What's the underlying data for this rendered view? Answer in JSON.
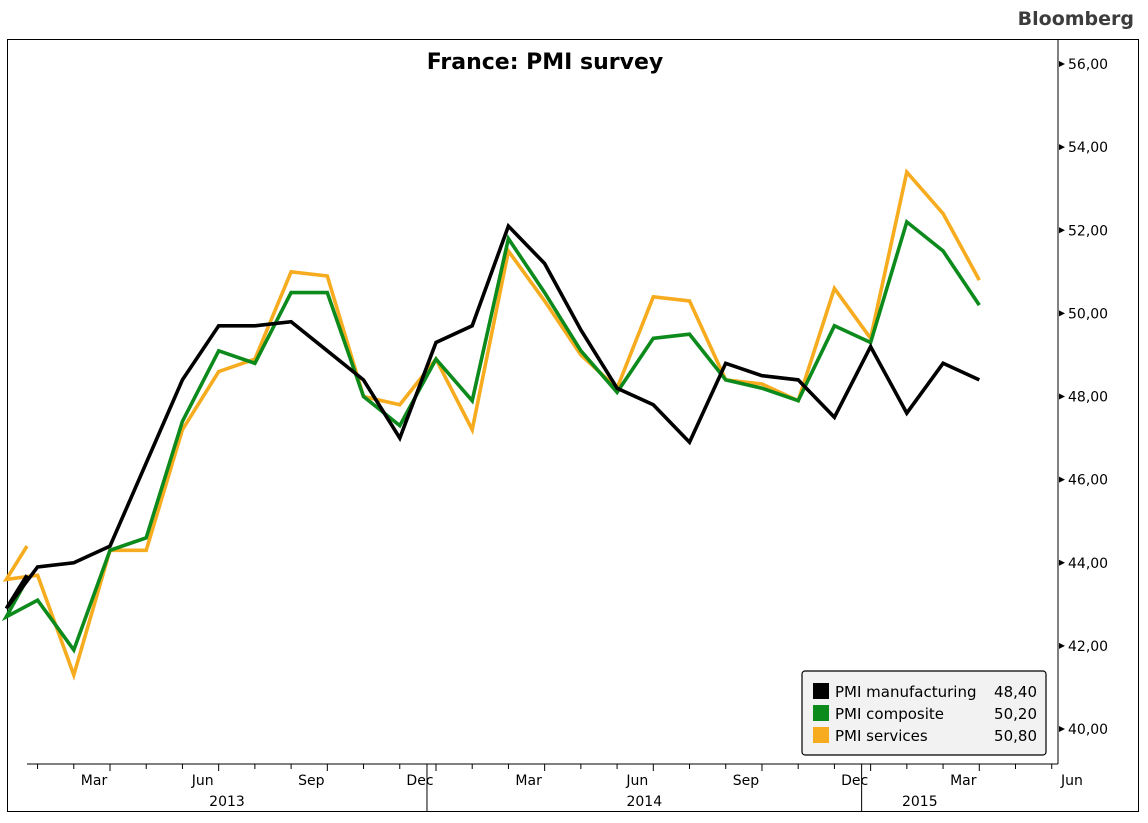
{
  "brand": "Bloomberg",
  "chart_data": {
    "type": "line",
    "title": "France: PMI survey",
    "ylim": [
      39.2,
      56.5
    ],
    "y_ticks": [
      "56,00",
      "54,00",
      "52,00",
      "50,00",
      "48,00",
      "46,00",
      "44,00",
      "42,00",
      "40,00"
    ],
    "y_tick_values": [
      56,
      54,
      52,
      50,
      48,
      46,
      44,
      42,
      40
    ],
    "x_month_ticks": [
      "Mar",
      "Jun",
      "Sep",
      "Dec",
      "Mar",
      "Jun",
      "Sep",
      "Dec",
      "Mar",
      "Jun"
    ],
    "x_year_labels": [
      "2013",
      "2014",
      "2015"
    ],
    "x": [
      "2013-01",
      "2013-02",
      "2013-03",
      "2013-04",
      "2013-05",
      "2013-06",
      "2013-07",
      "2013-08",
      "2013-09",
      "2013-10",
      "2013-11",
      "2013-12",
      "2014-01",
      "2014-02",
      "2014-03",
      "2014-04",
      "2014-05",
      "2014-06",
      "2014-07",
      "2014-08",
      "2014-09",
      "2014-10",
      "2014-11",
      "2014-12",
      "2015-01",
      "2015-02",
      "2015-03",
      "2015-04",
      "2015-05"
    ],
    "series": [
      {
        "name": "PMI manufacturing",
        "last": "48,40",
        "color": "#000000",
        "values": [
          43.9,
          44.0,
          44.4,
          46.4,
          48.4,
          49.7,
          49.7,
          49.8,
          49.1,
          48.4,
          47.0,
          49.3,
          49.7,
          52.1,
          51.2,
          49.6,
          48.2,
          47.8,
          46.9,
          48.8,
          48.5,
          48.4,
          47.5,
          49.2,
          47.6,
          48.8,
          48.4,
          null,
          null
        ]
      },
      {
        "name": "PMI composite",
        "last": "50,20",
        "color": "#0c8a1c",
        "values": [
          43.1,
          41.9,
          44.3,
          44.6,
          47.4,
          49.1,
          48.8,
          50.5,
          50.5,
          48.0,
          47.3,
          48.9,
          47.9,
          51.8,
          50.5,
          49.1,
          48.1,
          49.4,
          49.5,
          48.4,
          48.2,
          47.9,
          49.7,
          49.3,
          52.2,
          51.5,
          50.2,
          null,
          null
        ]
      },
      {
        "name": "PMI services",
        "last": "50,80",
        "color": "#f6ac1e",
        "values": [
          43.7,
          41.3,
          44.3,
          44.3,
          47.2,
          48.6,
          48.9,
          51.0,
          50.9,
          48.0,
          47.8,
          48.9,
          47.2,
          51.5,
          50.3,
          49.0,
          48.2,
          50.4,
          50.3,
          48.4,
          48.3,
          47.9,
          50.6,
          49.4,
          53.4,
          52.4,
          50.8,
          null,
          null
        ]
      }
    ],
    "leading_points": {
      "PMI manufacturing": [
        43.7,
        42.9
      ],
      "PMI composite": [
        43.6,
        42.7
      ],
      "PMI services": [
        44.4,
        43.6
      ]
    },
    "legend_position": "bottom-right",
    "grid": false
  }
}
